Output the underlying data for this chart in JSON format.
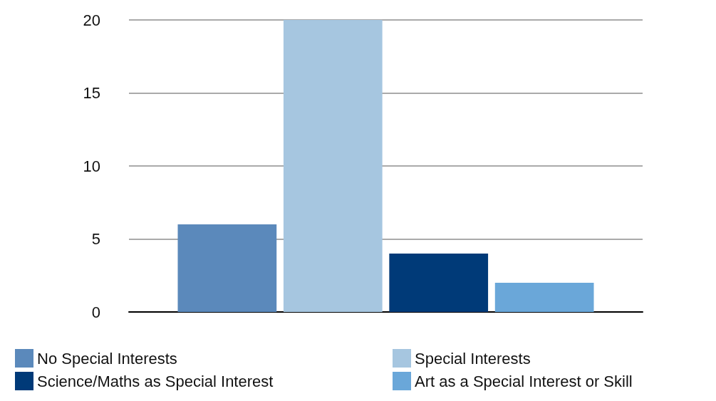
{
  "chart_data": {
    "type": "bar",
    "categories": [
      null
    ],
    "series": [
      {
        "name": "No Special Interests",
        "color": "#5b89bb",
        "values": [
          6
        ]
      },
      {
        "name": "Special Interests",
        "color": "#a6c6e0",
        "values": [
          20
        ]
      },
      {
        "name": "Science/Maths as Special Interest",
        "color": "#003a78",
        "values": [
          4
        ]
      },
      {
        "name": "Art as a Special Interest or Skill",
        "color": "#6aa7d9",
        "values": [
          2
        ]
      }
    ],
    "ylim": [
      0,
      20
    ],
    "yticks": [
      0,
      5,
      10,
      15,
      20
    ],
    "grid": "y",
    "legend": "bottom"
  }
}
